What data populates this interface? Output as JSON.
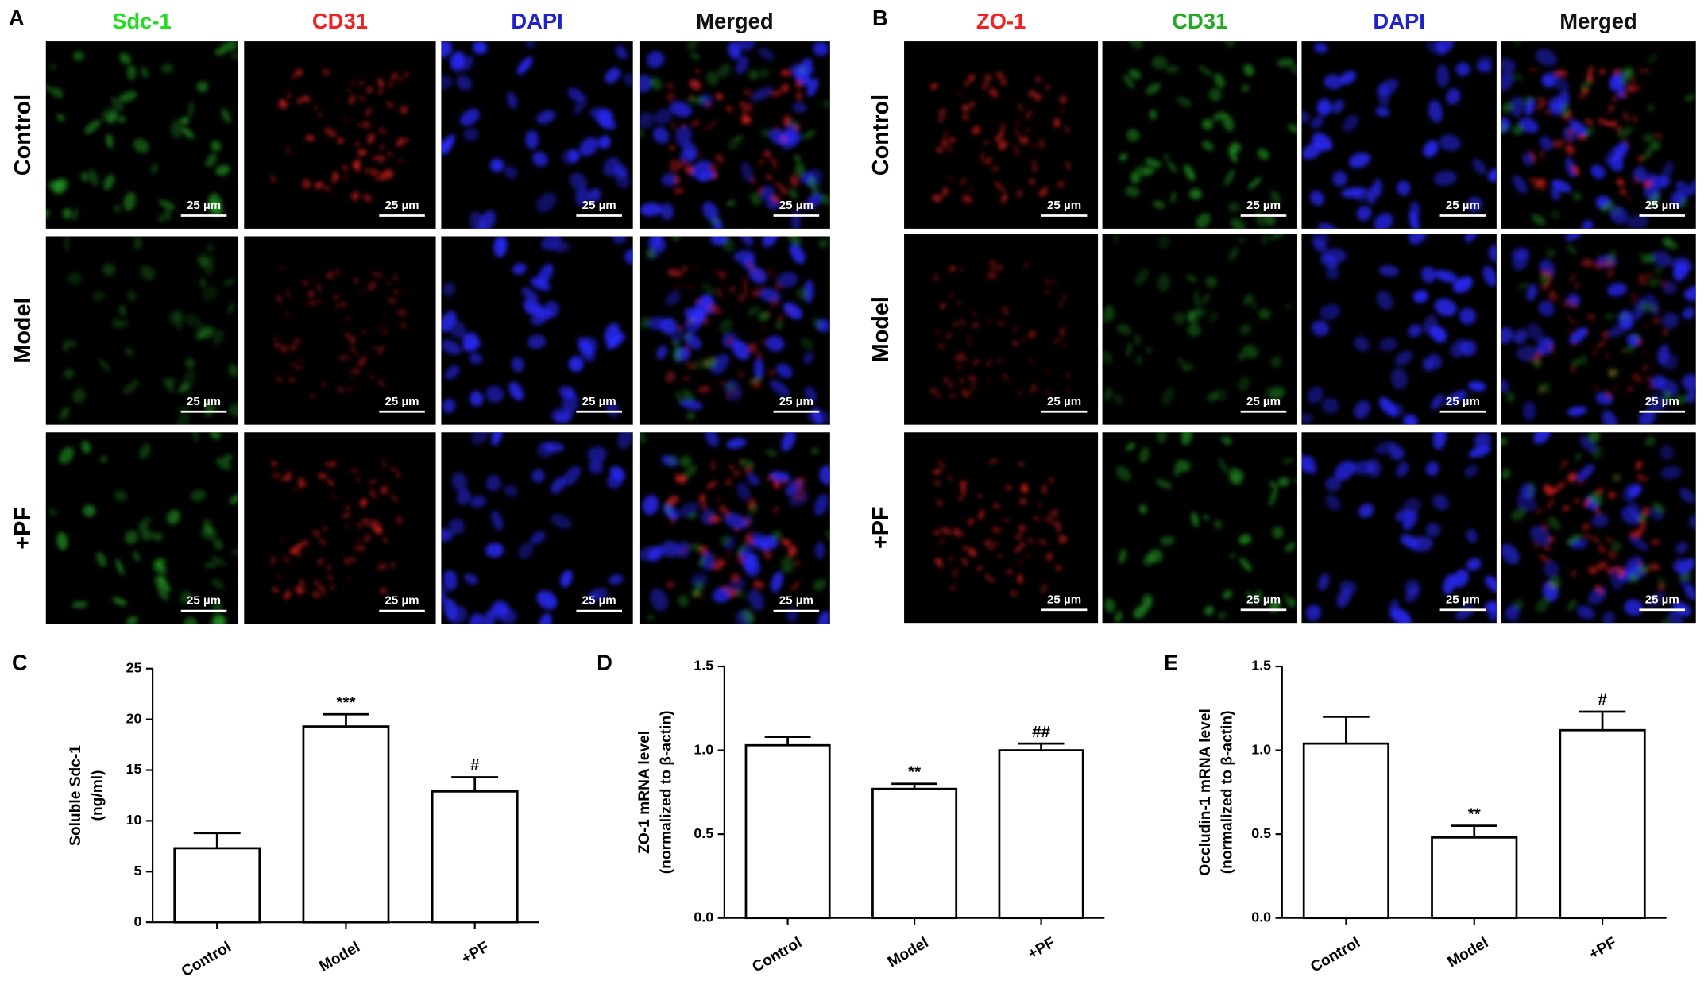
{
  "scale_bar": "25 µm",
  "panels": [
    {
      "label": "A",
      "columns": [
        "Sdc-1",
        "CD31",
        "DAPI",
        "Merged"
      ],
      "column_colors": [
        "#22dd22",
        "#ee2222",
        "#2222cc",
        "#111111"
      ],
      "channels": [
        "green",
        "red",
        "blue",
        "merged"
      ],
      "rows": [
        "Control",
        "Model",
        "+PF"
      ]
    },
    {
      "label": "B",
      "columns": [
        "ZO-1",
        "CD31",
        "DAPI",
        "Merged"
      ],
      "column_colors": [
        "#ee2222",
        "#22aa22",
        "#2222cc",
        "#111111"
      ],
      "channels": [
        "red",
        "green",
        "blue",
        "merged"
      ],
      "rows": [
        "Control",
        "Model",
        "+PF"
      ]
    }
  ],
  "chart_data": [
    {
      "type": "bar",
      "label": "C",
      "ylabel": [
        "Soluble Sdc-1",
        "(ng/ml)"
      ],
      "categories": [
        "Control",
        "Model",
        "+PF"
      ],
      "values": [
        7.3,
        19.3,
        12.9
      ],
      "errors": [
        1.5,
        1.2,
        1.4
      ],
      "annotations": [
        null,
        "***",
        "#"
      ],
      "ylim": [
        0,
        25
      ],
      "yticks": [
        0,
        5,
        10,
        15,
        20,
        25
      ],
      "color": "#ffffff"
    },
    {
      "type": "bar",
      "label": "D",
      "ylabel": [
        "ZO-1 mRNA level",
        "(normalized to β-actin)"
      ],
      "categories": [
        "Control",
        "Model",
        "+PF"
      ],
      "values": [
        1.03,
        0.77,
        1.0
      ],
      "errors": [
        0.05,
        0.03,
        0.04
      ],
      "annotations": [
        null,
        "**",
        "##"
      ],
      "ylim": [
        0,
        1.5
      ],
      "yticks": [
        {
          "value": 0,
          "label": "0.0"
        },
        0.5,
        {
          "value": 1,
          "label": "1.0"
        },
        1.5
      ],
      "color": "#ffffff"
    },
    {
      "type": "bar",
      "label": "E",
      "ylabel": [
        "Occludin-1 mRNA level",
        "(normalized to β-actin)"
      ],
      "categories": [
        "Control",
        "Model",
        "+PF"
      ],
      "values": [
        1.04,
        0.48,
        1.12
      ],
      "errors": [
        0.16,
        0.07,
        0.11
      ],
      "annotations": [
        null,
        "**",
        "#"
      ],
      "ylim": [
        0,
        1.5
      ],
      "yticks": [
        {
          "value": 0,
          "label": "0.0"
        },
        0.5,
        {
          "value": 1,
          "label": "1.0"
        },
        1.5
      ],
      "color": "#ffffff"
    }
  ]
}
